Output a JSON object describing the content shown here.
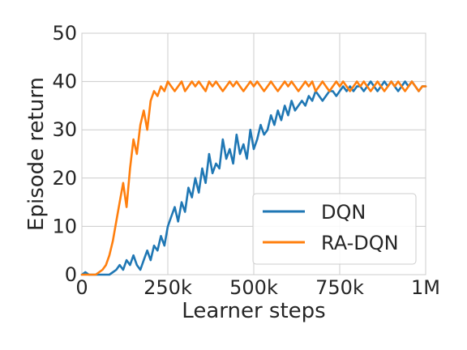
{
  "chart_data": {
    "type": "line",
    "title": "",
    "xlabel": "Learner steps",
    "ylabel": "Episode return",
    "xlim": [
      0,
      1000000
    ],
    "ylim": [
      0,
      50
    ],
    "xticks": [
      {
        "value": 0,
        "label": "0"
      },
      {
        "value": 250000,
        "label": "250k"
      },
      {
        "value": 500000,
        "label": "500k"
      },
      {
        "value": 750000,
        "label": "750k"
      },
      {
        "value": 1000000,
        "label": "1M"
      }
    ],
    "yticks": [
      {
        "value": 0,
        "label": "0"
      },
      {
        "value": 10,
        "label": "10"
      },
      {
        "value": 20,
        "label": "20"
      },
      {
        "value": 30,
        "label": "30"
      },
      {
        "value": 40,
        "label": "40"
      },
      {
        "value": 50,
        "label": "50"
      }
    ],
    "grid": true,
    "legend": {
      "position": "lower-right"
    },
    "series": [
      {
        "name": "DQN",
        "color": "#1f77b4",
        "x": [
          0,
          10000,
          20000,
          30000,
          40000,
          50000,
          60000,
          70000,
          80000,
          90000,
          100000,
          110000,
          120000,
          130000,
          140000,
          150000,
          160000,
          170000,
          180000,
          190000,
          200000,
          210000,
          220000,
          230000,
          240000,
          250000,
          260000,
          270000,
          280000,
          290000,
          300000,
          310000,
          320000,
          330000,
          340000,
          350000,
          360000,
          370000,
          380000,
          390000,
          400000,
          410000,
          420000,
          430000,
          440000,
          450000,
          460000,
          470000,
          480000,
          490000,
          500000,
          510000,
          520000,
          530000,
          540000,
          550000,
          560000,
          570000,
          580000,
          590000,
          600000,
          610000,
          620000,
          630000,
          640000,
          650000,
          660000,
          670000,
          680000,
          690000,
          700000,
          710000,
          720000,
          730000,
          740000,
          750000,
          760000,
          770000,
          780000,
          790000,
          800000,
          810000,
          820000,
          830000,
          840000,
          850000,
          860000,
          870000,
          880000,
          890000,
          900000,
          910000,
          920000,
          930000,
          940000,
          950000,
          960000,
          970000,
          980000,
          990000,
          1000000
        ],
        "y": [
          0,
          0.5,
          0,
          0,
          0,
          0,
          0,
          0,
          0,
          0.5,
          1,
          2,
          1,
          3,
          2,
          4,
          2,
          1,
          3,
          5,
          3,
          6,
          5,
          8,
          6,
          10,
          12,
          14,
          11,
          15,
          13,
          18,
          16,
          20,
          17,
          22,
          19,
          25,
          21,
          23,
          22,
          28,
          24,
          26,
          23,
          29,
          25,
          27,
          24,
          30,
          26,
          28,
          31,
          29,
          30,
          33,
          31,
          34,
          32,
          35,
          33,
          36,
          34,
          35,
          36,
          35,
          37,
          36,
          38,
          37,
          36,
          37,
          38,
          38,
          37,
          38,
          39,
          38,
          39,
          38,
          39,
          39,
          38,
          39,
          40,
          39,
          38,
          39,
          40,
          39,
          40,
          39,
          38,
          39,
          40,
          39,
          40,
          39,
          38,
          39,
          39
        ]
      },
      {
        "name": "RA-DQN",
        "color": "#ff7f0e",
        "x": [
          0,
          10000,
          20000,
          30000,
          40000,
          50000,
          60000,
          70000,
          80000,
          90000,
          100000,
          110000,
          120000,
          130000,
          140000,
          150000,
          160000,
          170000,
          180000,
          190000,
          200000,
          210000,
          220000,
          230000,
          240000,
          250000,
          260000,
          270000,
          280000,
          290000,
          300000,
          310000,
          320000,
          330000,
          340000,
          350000,
          360000,
          370000,
          380000,
          390000,
          400000,
          410000,
          420000,
          430000,
          440000,
          450000,
          460000,
          470000,
          480000,
          490000,
          500000,
          510000,
          520000,
          530000,
          540000,
          550000,
          560000,
          570000,
          580000,
          590000,
          600000,
          610000,
          620000,
          630000,
          640000,
          650000,
          660000,
          670000,
          680000,
          690000,
          700000,
          710000,
          720000,
          730000,
          740000,
          750000,
          760000,
          770000,
          780000,
          790000,
          800000,
          810000,
          820000,
          830000,
          840000,
          850000,
          860000,
          870000,
          880000,
          890000,
          900000,
          910000,
          920000,
          930000,
          940000,
          950000,
          960000,
          970000,
          980000,
          990000,
          1000000
        ],
        "y": [
          0,
          0,
          0,
          0,
          0,
          0.5,
          1,
          2,
          4,
          7,
          11,
          15,
          19,
          14,
          22,
          28,
          25,
          31,
          34,
          30,
          36,
          38,
          37,
          39,
          38,
          40,
          39,
          38,
          39,
          40,
          38,
          39,
          40,
          39,
          40,
          39,
          38,
          40,
          39,
          40,
          39,
          38,
          39,
          40,
          39,
          40,
          39,
          38,
          39,
          40,
          39,
          40,
          39,
          38,
          39,
          40,
          39,
          38,
          39,
          40,
          39,
          40,
          39,
          38,
          39,
          40,
          39,
          40,
          38,
          39,
          40,
          39,
          38,
          39,
          40,
          39,
          40,
          39,
          38,
          39,
          40,
          39,
          40,
          39,
          38,
          39,
          40,
          39,
          38,
          39,
          40,
          39,
          40,
          39,
          38,
          39,
          40,
          39,
          38,
          39,
          39
        ]
      }
    ]
  }
}
